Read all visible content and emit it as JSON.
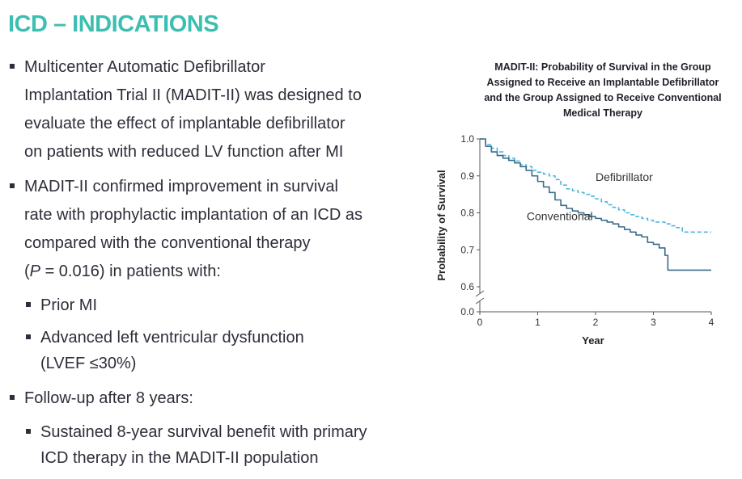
{
  "page": {
    "title": "ICD – INDICATIONS",
    "accent_color": "#3bbfb0",
    "bullets": [
      {
        "lines": [
          "Multicenter Automatic Defibrillator",
          "Implantation Trial II (MADIT-II) was designed to",
          "evaluate the effect of implantable defibrillator",
          "on patients with reduced LV function after MI"
        ]
      },
      {
        "lines": [
          "MADIT-II confirmed improvement in survival",
          "rate with prophylactic implantation of an ICD as",
          "compared with the conventional therapy"
        ],
        "last_line": {
          "open": "(",
          "p": "P",
          "rest": " = 0.016) in patients with:"
        }
      },
      {
        "sub": "Prior MI"
      },
      {
        "sub_lines": [
          "Advanced left ventricular dysfunction",
          "(LVEF ≤30%)"
        ]
      },
      {
        "lines": [
          "Follow-up after 8 years:"
        ]
      },
      {
        "sub_lines": [
          "Sustained 8-year survival benefit with primary",
          "ICD therapy in the MADIT-II population"
        ]
      }
    ]
  },
  "chart_data": {
    "type": "line",
    "title_lines": [
      "MADIT-II: Probability of Survival in the Group",
      "Assigned to Receive an Implantable Defibrillator",
      "and the Group Assigned to Receive Conventional",
      "Medical Therapy"
    ],
    "xlabel": "Year",
    "ylabel": "Probability of Survival",
    "xlim": [
      0,
      4
    ],
    "ylim": [
      0.6,
      1.0
    ],
    "x_ticks": [
      0,
      1,
      2,
      3,
      4
    ],
    "x_tick_labels": [
      "0",
      "1",
      "2",
      "3",
      "4"
    ],
    "y_ticks": [
      0.6,
      0.7,
      0.8,
      0.9,
      1.0
    ],
    "y_tick_labels": [
      "0.6",
      "0.7",
      "0.8",
      "0.9",
      "1.0"
    ],
    "y_break_label": "0.0",
    "series": [
      {
        "name": "Defibrillator",
        "color": "#4fb6dc",
        "dash": true,
        "x": [
          0,
          0.1,
          0.2,
          0.3,
          0.4,
          0.5,
          0.6,
          0.7,
          0.8,
          0.9,
          1.0,
          1.1,
          1.2,
          1.3,
          1.4,
          1.5,
          1.6,
          1.7,
          1.8,
          1.9,
          2.0,
          2.1,
          2.2,
          2.3,
          2.4,
          2.5,
          2.6,
          2.7,
          2.8,
          2.9,
          3.0,
          3.1,
          3.2,
          3.3,
          3.4,
          3.5,
          3.6,
          3.7,
          3.8,
          3.9,
          4.0
        ],
        "y": [
          1.0,
          0.985,
          0.975,
          0.965,
          0.955,
          0.948,
          0.94,
          0.93,
          0.925,
          0.915,
          0.91,
          0.905,
          0.9,
          0.89,
          0.875,
          0.865,
          0.86,
          0.855,
          0.85,
          0.845,
          0.838,
          0.83,
          0.822,
          0.815,
          0.808,
          0.8,
          0.795,
          0.79,
          0.785,
          0.78,
          0.775,
          0.775,
          0.77,
          0.765,
          0.76,
          0.748,
          0.748,
          0.748,
          0.748,
          0.748,
          0.748
        ]
      },
      {
        "name": "Conventional",
        "color": "#3a6d8c",
        "dash": false,
        "x": [
          0,
          0.1,
          0.2,
          0.3,
          0.4,
          0.5,
          0.6,
          0.7,
          0.8,
          0.9,
          1.0,
          1.1,
          1.2,
          1.3,
          1.4,
          1.5,
          1.6,
          1.7,
          1.8,
          1.9,
          2.0,
          2.1,
          2.2,
          2.3,
          2.4,
          2.5,
          2.6,
          2.7,
          2.8,
          2.9,
          3.0,
          3.1,
          3.2,
          3.25,
          3.5,
          3.75,
          4.0
        ],
        "y": [
          1.0,
          0.98,
          0.965,
          0.955,
          0.948,
          0.942,
          0.935,
          0.925,
          0.915,
          0.9,
          0.885,
          0.87,
          0.855,
          0.835,
          0.82,
          0.812,
          0.805,
          0.8,
          0.795,
          0.79,
          0.785,
          0.78,
          0.775,
          0.77,
          0.762,
          0.755,
          0.748,
          0.74,
          0.735,
          0.72,
          0.715,
          0.705,
          0.685,
          0.645,
          0.645,
          0.645,
          0.645
        ]
      }
    ],
    "annotations": [
      {
        "text": "Defibrillator",
        "x": 2.0,
        "y": 0.886
      },
      {
        "text": "Conventional",
        "x": 0.81,
        "y": 0.78
      }
    ]
  }
}
